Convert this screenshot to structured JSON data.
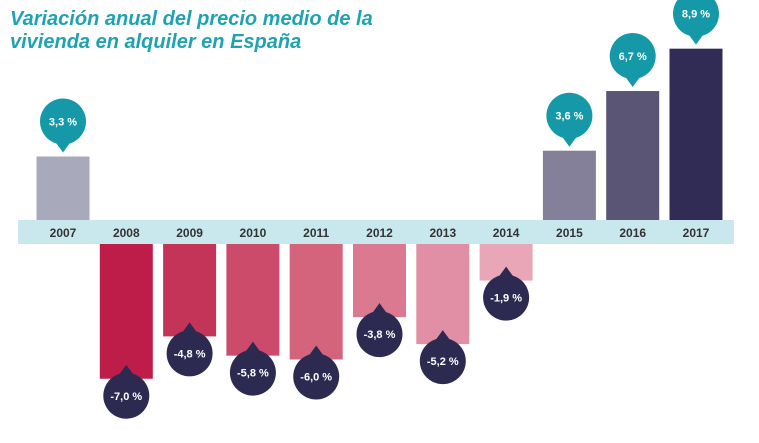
{
  "title_lines": [
    "Variación anual del precio medio de la",
    "vivienda en alquiler en España"
  ],
  "chart_data": {
    "type": "bar",
    "title": "Variación anual del precio medio de la vivienda en alquiler en España",
    "xlabel": "",
    "ylabel": "",
    "categories": [
      "2007",
      "2008",
      "2009",
      "2010",
      "2011",
      "2012",
      "2013",
      "2014",
      "2015",
      "2016",
      "2017"
    ],
    "values": [
      3.3,
      -7.0,
      -4.8,
      -5.8,
      -6.0,
      -3.8,
      -5.2,
      -1.9,
      3.6,
      6.7,
      8.9
    ],
    "labels": [
      "3,3 %",
      "-7,0 %",
      "-4,8 %",
      "-5,8 %",
      "-6,0 %",
      "-3,8 %",
      "-5,2 %",
      "-1,9 %",
      "3,6 %",
      "6,7 %",
      "8,9 %"
    ],
    "bar_colors": [
      "#a9a9bc",
      "#be1d4a",
      "#c43459",
      "#cc4a6a",
      "#d4637c",
      "#da798f",
      "#e08fa5",
      "#e8a6b7",
      "#858099",
      "#5a5475",
      "#302c55"
    ],
    "label_colors": {
      "positive": "#1599a8",
      "negative": "#2d2a52"
    },
    "axis_band_color": "#c9e8ee",
    "grid": false,
    "legend": "none"
  }
}
